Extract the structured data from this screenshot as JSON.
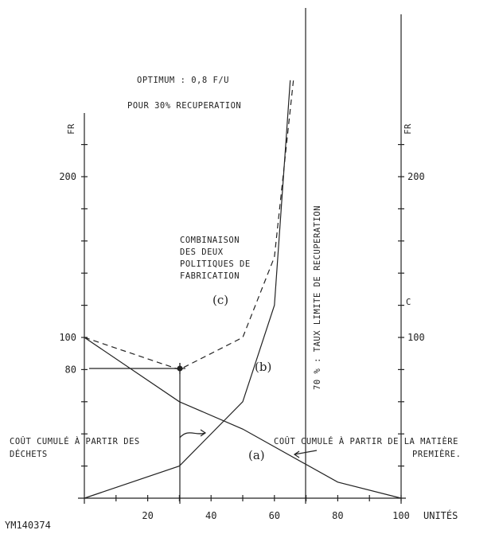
{
  "chart_data": {
    "type": "line",
    "x": [
      0,
      20,
      40,
      60,
      80,
      100
    ],
    "xticklabels": [
      "20",
      "40",
      "60",
      "80",
      "100"
    ],
    "xunit": "UNITÉS",
    "ylabel_left": "FR",
    "ylabel_right": "FR",
    "yticklabels_left": [
      "200",
      "100",
      "80"
    ],
    "yticklabels_right": [
      "200",
      "100"
    ],
    "ylim": [
      0,
      260
    ],
    "xlim": [
      0,
      100
    ],
    "series": [
      {
        "label": "(a)",
        "style": "solid",
        "points": [
          [
            0,
            100
          ],
          [
            30,
            60
          ],
          [
            50,
            43
          ],
          [
            80,
            10
          ],
          [
            100,
            0
          ]
        ]
      },
      {
        "label": "(b)",
        "style": "solid",
        "points": [
          [
            0,
            0
          ],
          [
            30,
            20
          ],
          [
            50,
            60
          ],
          [
            60,
            120
          ],
          [
            65,
            260
          ]
        ]
      },
      {
        "label": "(c)",
        "style": "dashed",
        "points": [
          [
            0,
            100
          ],
          [
            30,
            80
          ],
          [
            50,
            100
          ],
          [
            60,
            150
          ],
          [
            66,
            260
          ]
        ]
      }
    ],
    "optimum_point": [
      30,
      80
    ],
    "limit_line_x": 70,
    "annotations": {
      "optimum_line1": "OPTIMUM : 0,8 F/U",
      "optimum_line2": "POUR 30% RECUPERATION",
      "combinaison": [
        "COMBINAISON",
        "DES DEUX",
        "POLITIQUES DE",
        "FABRICATION"
      ],
      "limit": "70 % : TAUX LIMITE DE RECUPERATION",
      "cout_dechets_1": "COÛT CUMULÉ À PARTIR DES",
      "cout_dechets_2": "DÉCHETS",
      "cout_matiere_1": "COÛT CUMULÉ À PARTIR DE LA MATIÈRE",
      "cout_matiere_2": "PREMIÈRE.",
      "right_c": "C",
      "footer": "YM140374"
    }
  }
}
